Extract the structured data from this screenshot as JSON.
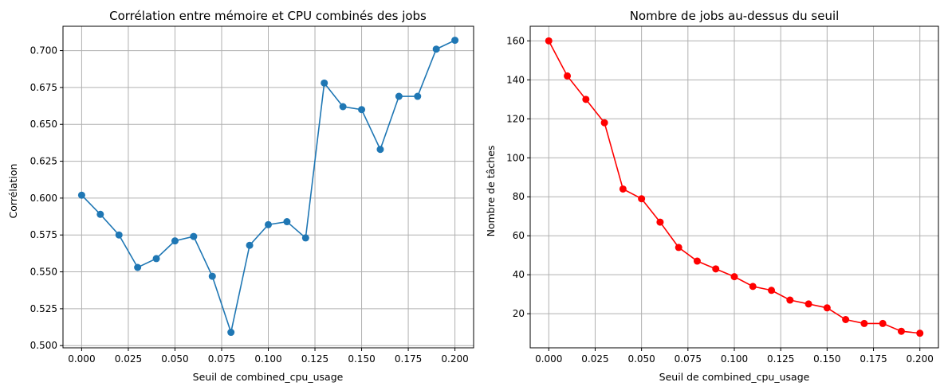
{
  "chart_data": [
    {
      "type": "line",
      "title": "Corrélation entre mémoire et CPU combinés des jobs",
      "xlabel": "Seuil de combined_cpu_usage",
      "ylabel": "Corrélation",
      "grid": true,
      "color": "#1f77b4",
      "marker": "circle",
      "xlim": [
        -0.01,
        0.21
      ],
      "ylim": [
        0.4985,
        0.7165
      ],
      "xticks": [
        0.0,
        0.025,
        0.05,
        0.075,
        0.1,
        0.125,
        0.15,
        0.175,
        0.2
      ],
      "xtick_labels": [
        "0.000",
        "0.025",
        "0.050",
        "0.075",
        "0.100",
        "0.125",
        "0.150",
        "0.175",
        "0.200"
      ],
      "yticks": [
        0.5,
        0.525,
        0.55,
        0.575,
        0.6,
        0.625,
        0.65,
        0.675,
        0.7
      ],
      "ytick_labels": [
        "0.500",
        "0.525",
        "0.550",
        "0.575",
        "0.600",
        "0.625",
        "0.650",
        "0.675",
        "0.700"
      ],
      "x": [
        0.0,
        0.01,
        0.02,
        0.03,
        0.04,
        0.05,
        0.06,
        0.07,
        0.08,
        0.09,
        0.1,
        0.11,
        0.12,
        0.13,
        0.14,
        0.15,
        0.16,
        0.17,
        0.18,
        0.19,
        0.2
      ],
      "y": [
        0.602,
        0.589,
        0.575,
        0.553,
        0.559,
        0.571,
        0.574,
        0.547,
        0.509,
        0.568,
        0.582,
        0.584,
        0.573,
        0.678,
        0.662,
        0.66,
        0.633,
        0.669,
        0.669,
        0.701,
        0.707
      ]
    },
    {
      "type": "line",
      "title": "Nombre de jobs au-dessus du seuil",
      "xlabel": "Seuil de combined_cpu_usage",
      "ylabel": "Nombre de tâches",
      "grid": true,
      "color": "#ff0000",
      "marker": "circle",
      "xlim": [
        -0.01,
        0.21
      ],
      "ylim": [
        2.5,
        167.5
      ],
      "xticks": [
        0.0,
        0.025,
        0.05,
        0.075,
        0.1,
        0.125,
        0.15,
        0.175,
        0.2
      ],
      "xtick_labels": [
        "0.000",
        "0.025",
        "0.050",
        "0.075",
        "0.100",
        "0.125",
        "0.150",
        "0.175",
        "0.200"
      ],
      "yticks": [
        20,
        40,
        60,
        80,
        100,
        120,
        140,
        160
      ],
      "ytick_labels": [
        "20",
        "40",
        "60",
        "80",
        "100",
        "120",
        "140",
        "160"
      ],
      "x": [
        0.0,
        0.01,
        0.02,
        0.03,
        0.04,
        0.05,
        0.06,
        0.07,
        0.08,
        0.09,
        0.1,
        0.11,
        0.12,
        0.13,
        0.14,
        0.15,
        0.16,
        0.17,
        0.18,
        0.19,
        0.2
      ],
      "y": [
        160,
        142,
        130,
        118,
        84,
        79,
        67,
        54,
        47,
        43,
        39,
        34,
        32,
        27,
        25,
        23,
        17,
        15,
        15,
        11,
        10
      ]
    }
  ]
}
